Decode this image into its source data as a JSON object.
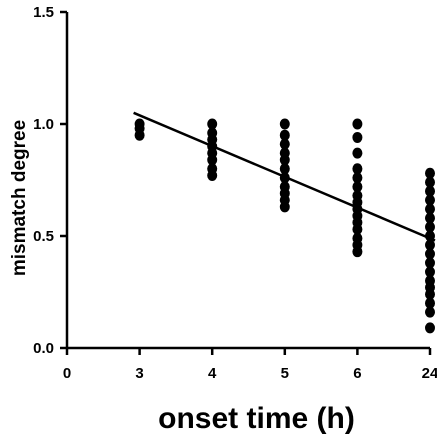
{
  "chart_data": {
    "type": "scatter",
    "title": "",
    "xlabel": "onset time (h)",
    "ylabel": "mismatch degree",
    "x_ticks": [
      "0",
      "3",
      "4",
      "5",
      "6",
      "24"
    ],
    "y_ticks": [
      "0.0",
      "0.5",
      "1.0",
      "1.5"
    ],
    "ylim": [
      0,
      1.5
    ],
    "grid": false,
    "legend": "none",
    "series": [
      {
        "points": [
          {
            "x": "3",
            "y": 1.0
          },
          {
            "x": "3",
            "y": 0.98
          },
          {
            "x": "3",
            "y": 0.95
          },
          {
            "x": "4",
            "y": 1.0
          },
          {
            "x": "4",
            "y": 0.96
          },
          {
            "x": "4",
            "y": 0.93
          },
          {
            "x": "4",
            "y": 0.9
          },
          {
            "x": "4",
            "y": 0.87
          },
          {
            "x": "4",
            "y": 0.84
          },
          {
            "x": "4",
            "y": 0.8
          },
          {
            "x": "4",
            "y": 0.77
          },
          {
            "x": "5",
            "y": 1.0
          },
          {
            "x": "5",
            "y": 0.95
          },
          {
            "x": "5",
            "y": 0.91
          },
          {
            "x": "5",
            "y": 0.87
          },
          {
            "x": "5",
            "y": 0.84
          },
          {
            "x": "5",
            "y": 0.8
          },
          {
            "x": "5",
            "y": 0.76
          },
          {
            "x": "5",
            "y": 0.72
          },
          {
            "x": "5",
            "y": 0.69
          },
          {
            "x": "5",
            "y": 0.66
          },
          {
            "x": "5",
            "y": 0.63
          },
          {
            "x": "6",
            "y": 1.0
          },
          {
            "x": "6",
            "y": 0.94
          },
          {
            "x": "6",
            "y": 0.87
          },
          {
            "x": "6",
            "y": 0.8
          },
          {
            "x": "6",
            "y": 0.76
          },
          {
            "x": "6",
            "y": 0.72
          },
          {
            "x": "6",
            "y": 0.68
          },
          {
            "x": "6",
            "y": 0.65
          },
          {
            "x": "6",
            "y": 0.62
          },
          {
            "x": "6",
            "y": 0.59
          },
          {
            "x": "6",
            "y": 0.56
          },
          {
            "x": "6",
            "y": 0.53
          },
          {
            "x": "6",
            "y": 0.49
          },
          {
            "x": "6",
            "y": 0.46
          },
          {
            "x": "6",
            "y": 0.43
          },
          {
            "x": "24",
            "y": 0.78
          },
          {
            "x": "24",
            "y": 0.74
          },
          {
            "x": "24",
            "y": 0.7
          },
          {
            "x": "24",
            "y": 0.66
          },
          {
            "x": "24",
            "y": 0.62
          },
          {
            "x": "24",
            "y": 0.58
          },
          {
            "x": "24",
            "y": 0.54
          },
          {
            "x": "24",
            "y": 0.5
          },
          {
            "x": "24",
            "y": 0.46
          },
          {
            "x": "24",
            "y": 0.42
          },
          {
            "x": "24",
            "y": 0.38
          },
          {
            "x": "24",
            "y": 0.34
          },
          {
            "x": "24",
            "y": 0.3
          },
          {
            "x": "24",
            "y": 0.27
          },
          {
            "x": "24",
            "y": 0.24
          },
          {
            "x": "24",
            "y": 0.2
          },
          {
            "x": "24",
            "y": 0.16
          },
          {
            "x": "24",
            "y": 0.09
          }
        ]
      }
    ],
    "trend_line": {
      "from": {
        "x": "3",
        "y": 1.05
      },
      "to": {
        "x": "24",
        "y": 0.48
      }
    },
    "colors": {
      "points": "#000000",
      "line": "#000000"
    }
  }
}
